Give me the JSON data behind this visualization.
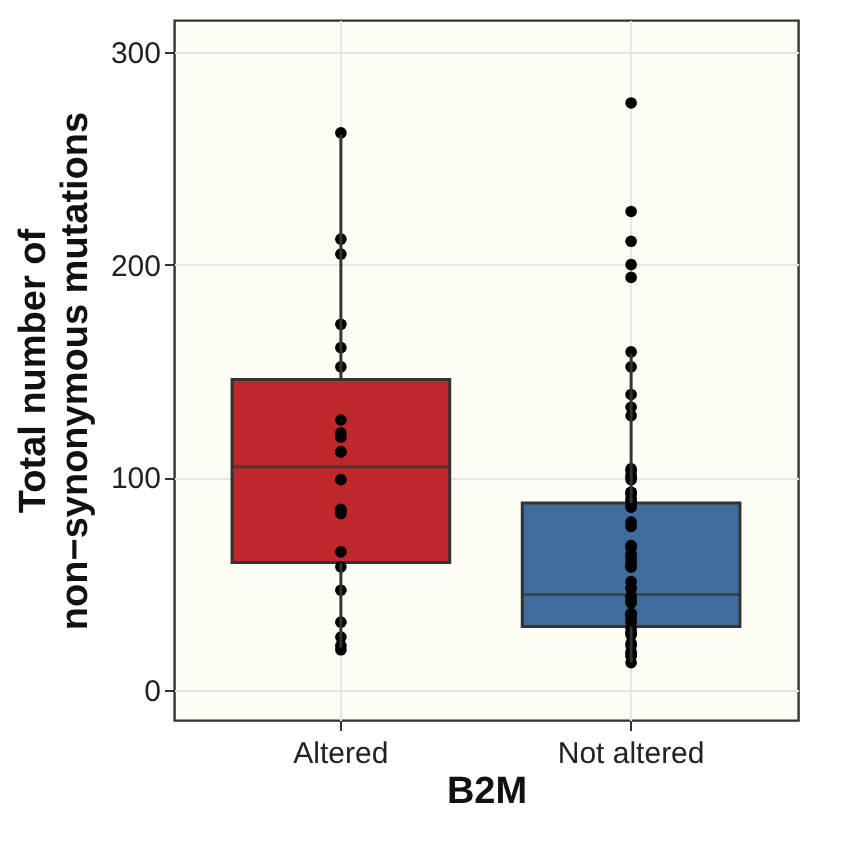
{
  "chart_data": {
    "type": "box",
    "xlabel": "B2M",
    "ylabel": "Total number of\nnon−synonymous mutations",
    "categories": [
      "Altered",
      "Not altered"
    ],
    "ylim": [
      -14,
      315
    ],
    "yticks": [
      0,
      100,
      200,
      300
    ],
    "grid": true,
    "series": [
      {
        "type": "box",
        "colors": [
          "#c0292b",
          "#3e6d9c"
        ],
        "boxes": [
          {
            "low": 20,
            "q1": 60,
            "median": 105,
            "q3": 146,
            "high": 261
          },
          {
            "low": 13,
            "q1": 30,
            "median": 45,
            "q3": 88,
            "high": 158
          }
        ]
      },
      {
        "type": "scatter",
        "color": "#000000",
        "marker": "circle",
        "x": [
          "Altered",
          "Altered",
          "Altered",
          "Altered",
          "Altered",
          "Altered",
          "Altered",
          "Altered",
          "Altered",
          "Altered",
          "Altered",
          "Altered",
          "Altered",
          "Altered",
          "Altered",
          "Altered",
          "Altered",
          "Altered",
          "Altered",
          "Altered",
          "Altered",
          "Altered",
          "Not altered",
          "Not altered",
          "Not altered",
          "Not altered",
          "Not altered",
          "Not altered",
          "Not altered",
          "Not altered",
          "Not altered",
          "Not altered",
          "Not altered",
          "Not altered",
          "Not altered",
          "Not altered",
          "Not altered",
          "Not altered",
          "Not altered",
          "Not altered",
          "Not altered",
          "Not altered",
          "Not altered",
          "Not altered",
          "Not altered",
          "Not altered",
          "Not altered",
          "Not altered",
          "Not altered",
          "Not altered",
          "Not altered",
          "Not altered",
          "Not altered",
          "Not altered",
          "Not altered",
          "Not altered",
          "Not altered",
          "Not altered",
          "Not altered",
          "Not altered",
          "Not altered",
          "Not altered",
          "Not altered",
          "Not altered",
          "Not altered",
          "Not altered",
          "Not altered",
          "Not altered",
          "Not altered",
          "Not altered",
          "Not altered",
          "Not altered",
          "Not altered",
          "Not altered",
          "Not altered",
          "Not altered"
        ],
        "values": [
          262,
          212,
          205,
          172,
          161,
          152,
          127,
          121,
          119,
          112,
          112,
          99,
          85,
          83,
          84,
          65,
          58,
          47,
          32,
          25,
          21,
          19,
          276,
          225,
          211,
          200,
          194,
          159,
          152,
          139,
          133,
          129,
          104,
          103,
          101,
          100,
          99,
          93,
          93,
          92,
          90,
          89,
          87,
          86,
          79,
          77,
          68,
          67,
          64,
          63,
          61,
          59,
          58,
          58,
          51,
          48,
          48,
          44,
          44,
          42,
          41,
          36,
          36,
          35,
          33,
          32,
          29,
          27,
          27,
          26,
          22,
          21,
          18,
          17,
          16,
          13
        ]
      }
    ]
  }
}
